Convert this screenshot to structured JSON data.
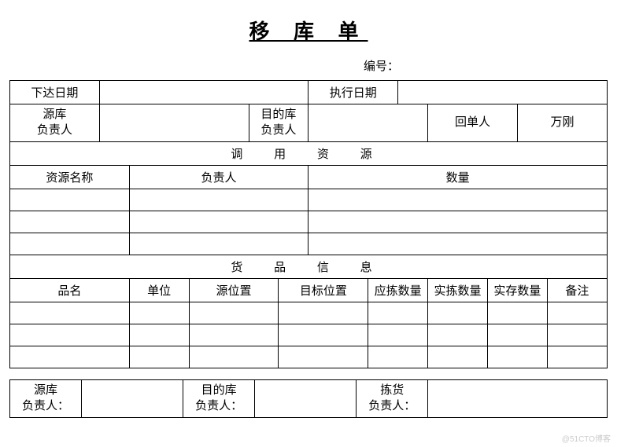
{
  "title": "移 库 单",
  "docNumber": {
    "label": "编号：",
    "value": ""
  },
  "section1": {
    "issueDateLabel": "下达日期",
    "issueDateValue": "",
    "execDateLabel": "执行日期",
    "execDateValue": "",
    "sourcePersonLabel": "源库\n负责人",
    "sourcePersonValue": "",
    "destPersonLabel": "目的库\n负责人",
    "destPersonValue": "",
    "receiptPersonLabel": "回单人",
    "receiptPersonValue": "万刚"
  },
  "resources": {
    "sectionTitle": "调  用  资  源",
    "headers": {
      "name": "资源名称",
      "person": "负责人",
      "qty": "数量"
    },
    "rows": [
      {
        "name": "",
        "person": "",
        "qty": ""
      },
      {
        "name": "",
        "person": "",
        "qty": ""
      },
      {
        "name": "",
        "person": "",
        "qty": ""
      }
    ]
  },
  "goods": {
    "sectionTitle": "货  品  信  息",
    "headers": {
      "name": "品名",
      "unit": "单位",
      "sourceLoc": "源位置",
      "targetLoc": "目标位置",
      "plannedQty": "应拣数量",
      "actualQty": "实拣数量",
      "storedQty": "实存数量",
      "remark": "备注"
    },
    "rows": [
      {
        "name": "",
        "unit": "",
        "sourceLoc": "",
        "targetLoc": "",
        "plannedQty": "",
        "actualQty": "",
        "storedQty": "",
        "remark": ""
      },
      {
        "name": "",
        "unit": "",
        "sourceLoc": "",
        "targetLoc": "",
        "plannedQty": "",
        "actualQty": "",
        "storedQty": "",
        "remark": ""
      },
      {
        "name": "",
        "unit": "",
        "sourceLoc": "",
        "targetLoc": "",
        "plannedQty": "",
        "actualQty": "",
        "storedQty": "",
        "remark": ""
      }
    ]
  },
  "footer": {
    "sourcePersonLabel": "源库\n负责人：",
    "sourcePersonValue": "",
    "destPersonLabel": "目的库\n负责人：",
    "destPersonValue": "",
    "pickerPersonLabel": "拣货\n负责人：",
    "pickerPersonValue": ""
  },
  "watermark": "@51CTO博客",
  "styling": {
    "borderColor": "#000000",
    "backgroundColor": "#ffffff",
    "textColor": "#000000",
    "titleFontSize": 26,
    "cellFontSize": 15,
    "fontFamily": "SimSun"
  }
}
